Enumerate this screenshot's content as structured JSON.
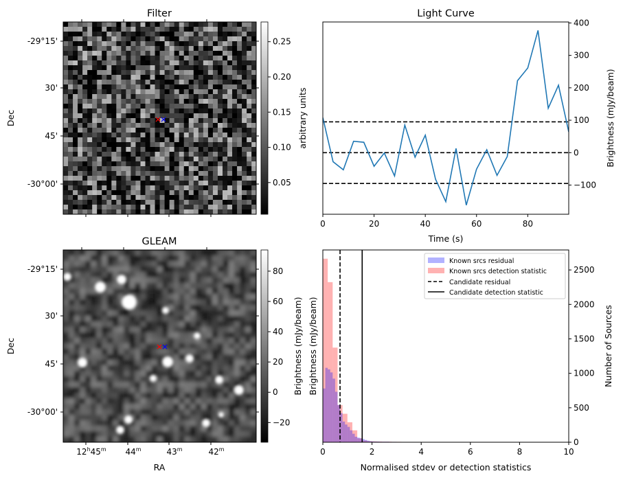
{
  "chart_data": [
    {
      "type": "heatmap",
      "title": "Filter",
      "ylabel": "Dec",
      "yticks": [
        "-29°15'",
        "30'",
        "45'",
        "-30°00'"
      ],
      "colorbar": {
        "label": "arbitrary units",
        "ticks": [
          "0.05",
          "0.10",
          "0.15",
          "0.20",
          "0.25"
        ],
        "range": [
          0.005,
          0.278
        ],
        "tick_values": [
          0.05,
          0.1,
          0.15,
          0.2,
          0.25
        ]
      },
      "markers": [
        {
          "symbol": "x",
          "color": "#ff0000"
        },
        {
          "symbol": "x",
          "color": "#0000ff"
        }
      ]
    },
    {
      "type": "line",
      "title": "Light Curve",
      "xlabel": "Time (s)",
      "ylabel": "Brightness (mJy/beam)",
      "xlim": [
        0,
        96
      ],
      "ylim": [
        -190,
        403
      ],
      "xticks": [
        0,
        20,
        40,
        60,
        80
      ],
      "yticks": [
        -100,
        0,
        100,
        200,
        300,
        400
      ],
      "x": [
        0,
        4,
        8,
        12,
        16,
        20,
        24,
        28,
        32,
        36,
        40,
        44,
        48,
        52,
        56,
        60,
        64,
        68,
        72,
        76,
        80,
        84,
        88,
        92,
        96
      ],
      "y": [
        108,
        -28,
        -53,
        35,
        32,
        -42,
        -1,
        -72,
        85,
        -14,
        54,
        -82,
        -151,
        13,
        -162,
        -51,
        9,
        -70,
        -12,
        222,
        261,
        377,
        137,
        208,
        64
      ],
      "hlines": [
        95,
        0,
        -95
      ],
      "line_color": "#1f77b4"
    },
    {
      "type": "heatmap",
      "title": "GLEAM",
      "xlabel": "RA",
      "ylabel": "Dec",
      "xticks": [
        {
          "h": "12",
          "hs": "h",
          "m": "45",
          "ms": "m"
        },
        {
          "h": "",
          "hs": "",
          "m": "44",
          "ms": "m"
        },
        {
          "h": "",
          "hs": "",
          "m": "43",
          "ms": "m"
        },
        {
          "h": "",
          "hs": "",
          "m": "42",
          "ms": "m"
        }
      ],
      "yticks": [
        "-29°15'",
        "30'",
        "45'",
        "-30°00'"
      ],
      "colorbar": {
        "label": "Brightness (mJy/beam)",
        "ticks": [
          "−20",
          "0",
          "20",
          "40",
          "60",
          "80"
        ],
        "range": [
          -33,
          94
        ],
        "tick_values": [
          -20,
          0,
          20,
          40,
          60,
          80
        ]
      },
      "markers": [
        {
          "symbol": "x",
          "color": "#ff0000"
        },
        {
          "symbol": "x",
          "color": "#0000ff"
        }
      ]
    },
    {
      "type": "bar",
      "xlabel": "Normalised stdev or detection statistics",
      "ylabel_left": "Brightness (mJy/beam)",
      "ylabel_right": "Number of Sources",
      "xlim": [
        0,
        10
      ],
      "ylim": [
        0,
        2790
      ],
      "xticks": [
        0,
        2,
        4,
        6,
        8,
        10
      ],
      "yticks": [
        0,
        500,
        1000,
        1500,
        2000,
        2500
      ],
      "series": [
        {
          "name": "Known srcs residual",
          "color": "#0000ff",
          "alpha": 0.3,
          "bin_width": 0.1,
          "bin_start": 0,
          "values": [
            780,
            1080,
            1057,
            1013,
            923,
            733,
            540,
            423,
            300,
            257,
            223,
            173,
            123,
            80,
            67,
            57,
            47,
            33,
            23,
            15,
            12,
            10,
            10,
            8,
            8,
            8,
            8,
            6,
            6,
            6,
            5,
            5,
            5,
            4,
            4,
            4,
            4,
            3,
            3,
            3,
            3,
            2,
            2,
            2,
            2,
            2,
            2,
            2,
            2,
            2,
            2
          ]
        },
        {
          "name": "Known srcs detection statistic",
          "color": "#ff0000",
          "alpha": 0.3,
          "bin_width": 0.2,
          "bin_start": 0,
          "values": [
            2663,
            2323,
            1373,
            540,
            413,
            290,
            173,
            57,
            25,
            15,
            12,
            10,
            8,
            8,
            6,
            6,
            5,
            5,
            5,
            4,
            4,
            4,
            4,
            4,
            4,
            4,
            3,
            3,
            3,
            3,
            3,
            3,
            3,
            3,
            3,
            3,
            3,
            3,
            3,
            3,
            3,
            3,
            3,
            3,
            3,
            3,
            3,
            3
          ]
        },
        {
          "name": "Candidate residual",
          "type": "vline",
          "style": "dashed",
          "value": 0.7
        },
        {
          "name": "Candidate detection statistic",
          "type": "vline",
          "style": "solid",
          "value": 1.6
        }
      ],
      "legend": "top-right"
    }
  ]
}
